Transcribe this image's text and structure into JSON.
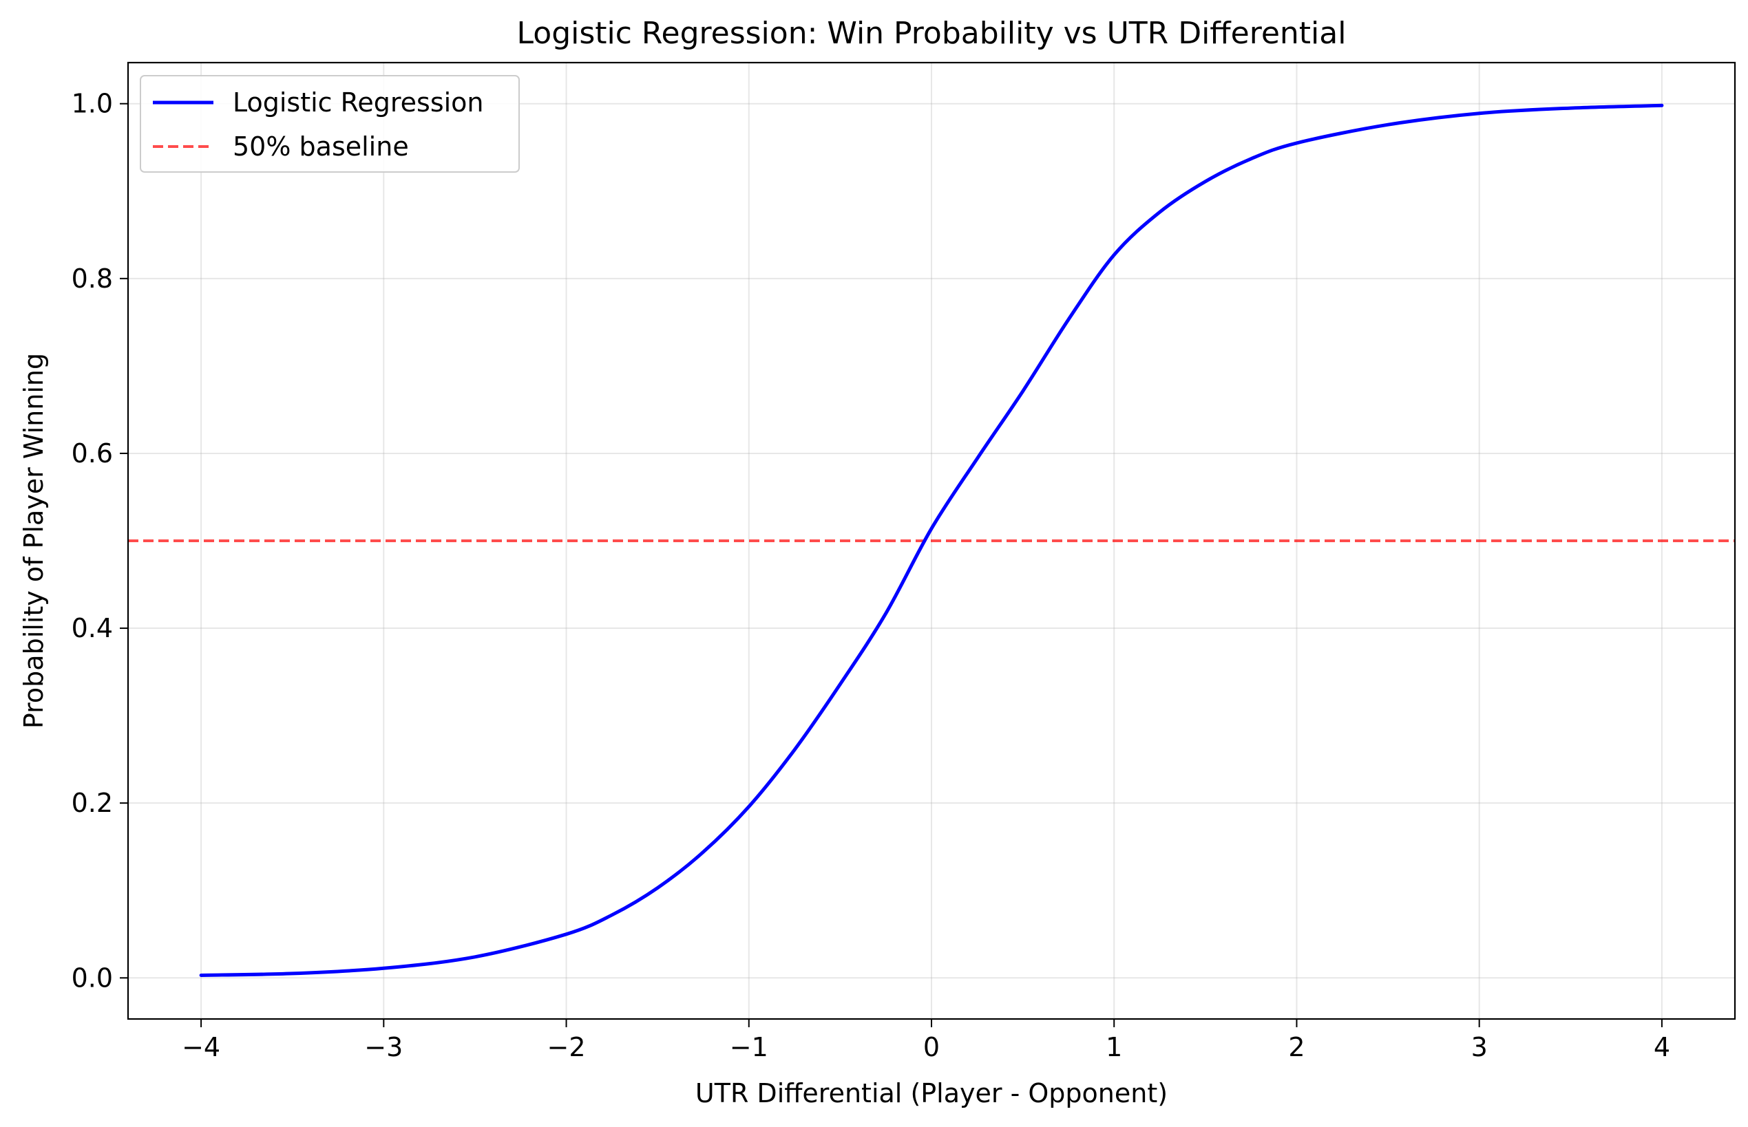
{
  "chart_data": {
    "type": "line",
    "title": "Logistic Regression: Win Probability vs UTR Differential",
    "xlabel": "UTR Differential (Player - Opponent)",
    "ylabel": "Probability of Player Winning",
    "xlim": [
      -4.4,
      4.4
    ],
    "ylim": [
      -0.047,
      1.047
    ],
    "x_ticks": [
      {
        "value": -4,
        "label": "−4"
      },
      {
        "value": -3,
        "label": "−3"
      },
      {
        "value": -2,
        "label": "−2"
      },
      {
        "value": -1,
        "label": "−1"
      },
      {
        "value": 0,
        "label": "0"
      },
      {
        "value": 1,
        "label": "1"
      },
      {
        "value": 2,
        "label": "2"
      },
      {
        "value": 3,
        "label": "3"
      },
      {
        "value": 4,
        "label": "4"
      }
    ],
    "y_ticks": [
      {
        "value": 0.0,
        "label": "0.0"
      },
      {
        "value": 0.2,
        "label": "0.2"
      },
      {
        "value": 0.4,
        "label": "0.4"
      },
      {
        "value": 0.6,
        "label": "0.6"
      },
      {
        "value": 0.8,
        "label": "0.8"
      },
      {
        "value": 1.0,
        "label": "1.0"
      }
    ],
    "grid": true,
    "legend_position": "top-left",
    "series": [
      {
        "name": "Logistic Regression",
        "color": "#0000ff",
        "style": "solid",
        "x": [
          -4.0,
          -3.5,
          -3.0,
          -2.5,
          -2.0,
          -1.75,
          -1.5,
          -1.25,
          -1.0,
          -0.75,
          -0.5,
          -0.25,
          0.0,
          0.25,
          0.5,
          0.75,
          1.0,
          1.25,
          1.5,
          1.75,
          2.0,
          2.5,
          3.0,
          3.5,
          4.0
        ],
        "y": [
          0.003,
          0.005,
          0.011,
          0.024,
          0.05,
          0.072,
          0.103,
          0.144,
          0.196,
          0.261,
          0.336,
          0.417,
          0.514,
          0.594,
          0.671,
          0.753,
          0.827,
          0.876,
          0.911,
          0.937,
          0.955,
          0.976,
          0.989,
          0.995,
          0.998
        ]
      },
      {
        "name": "50% baseline",
        "color": "#ff0000",
        "style": "dashed",
        "y_constant": 0.5
      }
    ]
  }
}
